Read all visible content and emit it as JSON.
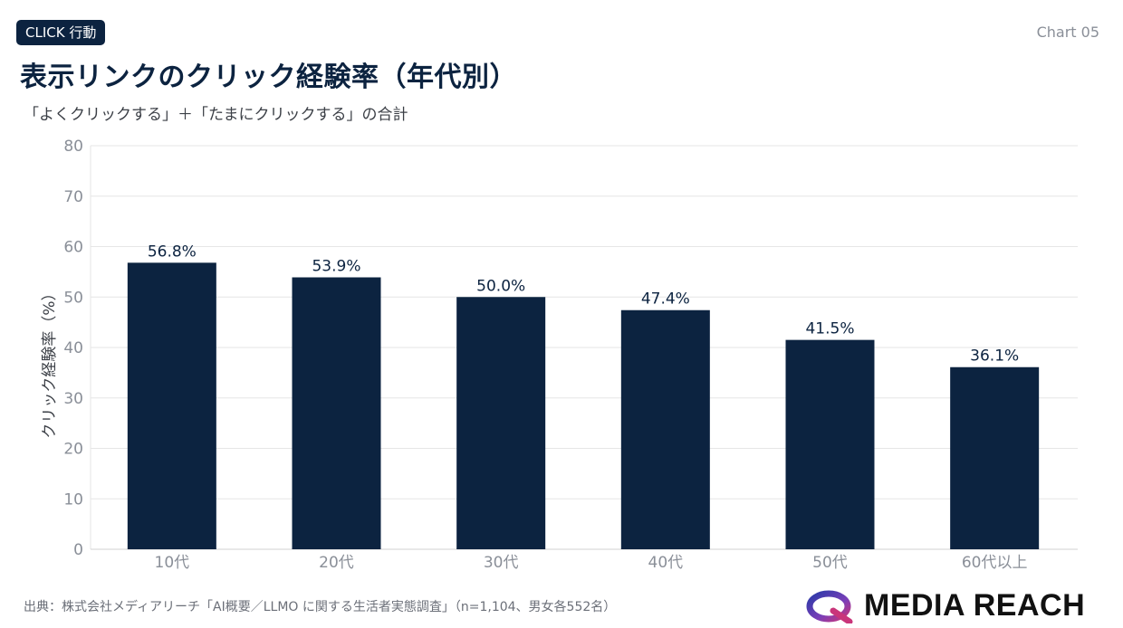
{
  "header": {
    "badge": "CLICK  行動",
    "chart_no": "Chart 05",
    "title": "表示リンクのクリック経験率（年代別）",
    "subtitle": "「よくクリックする」＋「たまにクリックする」の合計"
  },
  "footer": {
    "source": "出典：株式会社メディアリーチ「AI概要／LLMO に関する生活者実態調査」（n=1,104、男女各552名）",
    "logo_text": "MEDIA REACH"
  },
  "colors": {
    "bar": "#0c2340",
    "grid": "#e6e6e6",
    "axis_text": "#8a8f98"
  },
  "chart_data": {
    "type": "bar",
    "categories": [
      "10代",
      "20代",
      "30代",
      "40代",
      "50代",
      "60代以上"
    ],
    "values": [
      56.8,
      53.9,
      50.0,
      47.4,
      41.5,
      36.1
    ],
    "data_labels": [
      "56.8%",
      "53.9%",
      "50.0%",
      "47.4%",
      "41.5%",
      "36.1%"
    ],
    "ylabel": "クリック経験率（%）",
    "ylim": [
      0,
      80
    ],
    "yticks": [
      0,
      10,
      20,
      30,
      40,
      50,
      60,
      70,
      80
    ],
    "grid": true
  }
}
